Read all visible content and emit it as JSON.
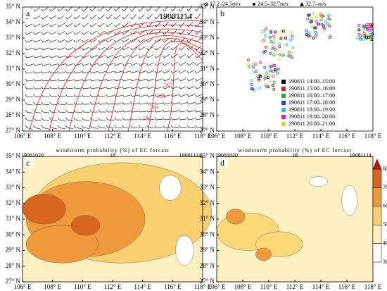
{
  "axes": {
    "x_labels": [
      "106° E",
      "108° E",
      "110° E",
      "112° E",
      "114° E",
      "116° E",
      "118° E"
    ],
    "y_labels": [
      "27° N",
      "28° N",
      "29° N",
      "30° N",
      "31° N",
      "32° N",
      "33° N",
      "34° N",
      "35° N"
    ]
  },
  "panels": {
    "a": {
      "letter": "a",
      "time": "19081114",
      "contour_labels": [
        "567",
        "568",
        "569",
        "570"
      ]
    },
    "b": {
      "letter": "b",
      "speed_legend": [
        "17.2–24.5m/s",
        "24.5–32.7m/s",
        "32.7–m/s"
      ],
      "time_legend": [
        {
          "label": "190811 14:00–15:00",
          "color": "#000000"
        },
        {
          "label": "190811 15:00–16:00",
          "color": "#e02020"
        },
        {
          "label": "190811 16:00–17:00",
          "color": "#20b020"
        },
        {
          "label": "190811 17:00–18:00",
          "color": "#2040e0"
        },
        {
          "label": "190811 18:00–19:00",
          "color": "#20c8d8"
        },
        {
          "label": "190811 19:00–20:00",
          "color": "#e020c0"
        },
        {
          "label": "190811 20:00–21:00",
          "color": "#e8d020"
        }
      ]
    },
    "c": {
      "letter": "c",
      "title": "windstorm probability (%) of EC forcast",
      "init": "19081020",
      "lead": "18",
      "valid": "19081114"
    },
    "d": {
      "letter": "d",
      "title": "windstorm probability (%) of EC forcast",
      "init": "19081020",
      "lead": "18",
      "valid": "19081114"
    }
  },
  "colorbar": {
    "ticks": [
      30,
      40,
      50,
      60,
      70,
      80
    ]
  }
}
